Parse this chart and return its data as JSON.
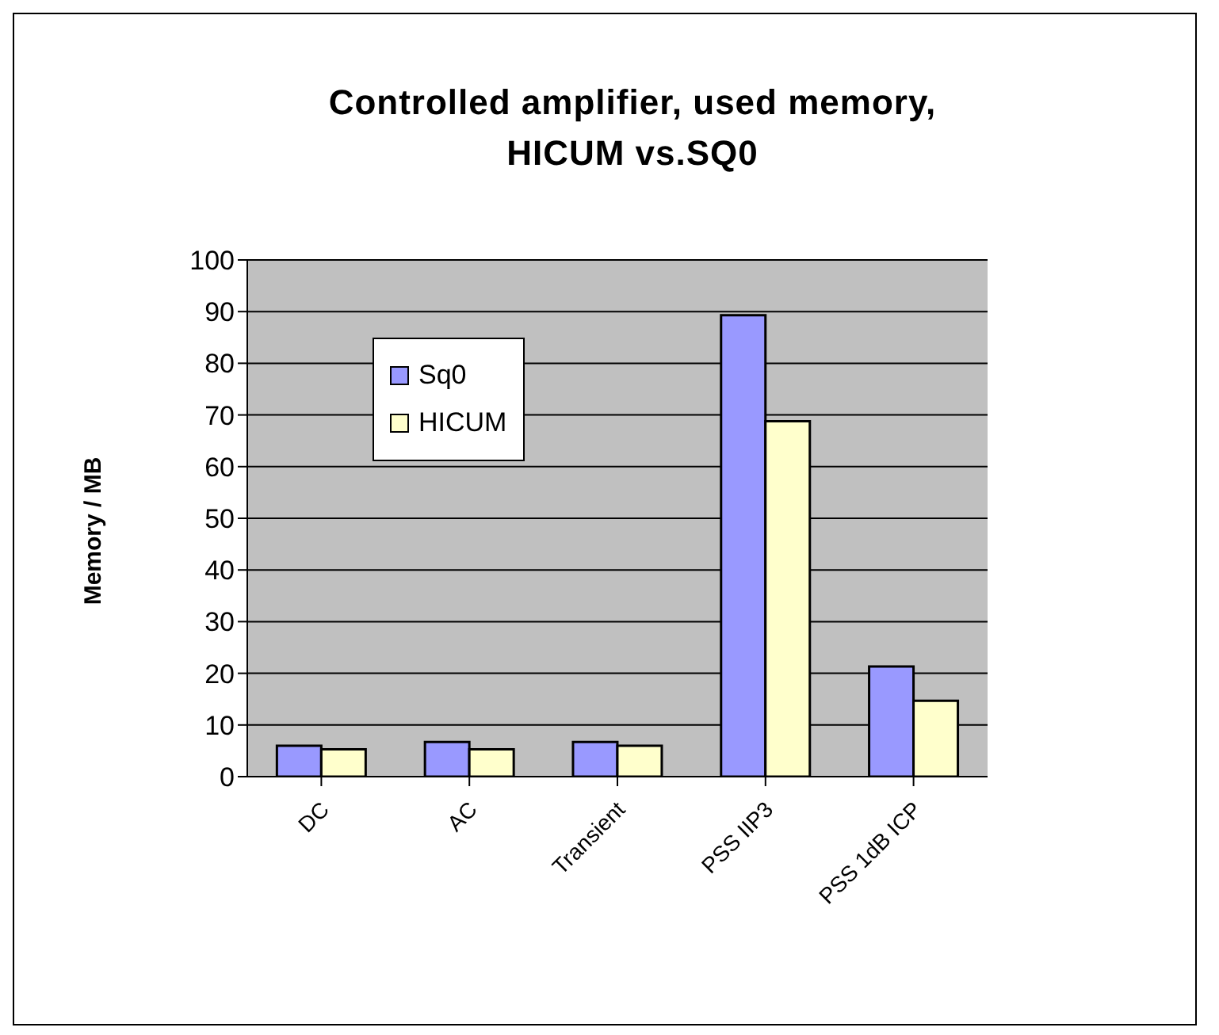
{
  "chart_data": {
    "type": "bar",
    "title": "Controlled amplifier, used memory, HICUM vs.SQ0",
    "ylabel": "Memory / MB",
    "categories": [
      "DC",
      "AC",
      "Transient",
      "PSS IIP3",
      "PSS 1dB ICP"
    ],
    "series": [
      {
        "name": "Sq0",
        "color": "#9999ff",
        "values": [
          6,
          6.7,
          6.7,
          89.3,
          21.3
        ]
      },
      {
        "name": "HICUM",
        "color": "#ffffcc",
        "values": [
          5.3,
          5.3,
          6,
          68.8,
          14.7
        ]
      }
    ],
    "ylim": [
      0,
      100
    ],
    "yticks": [
      0,
      10,
      20,
      30,
      40,
      50,
      60,
      70,
      80,
      90,
      100
    ],
    "grid": "y",
    "legend": "top left"
  }
}
